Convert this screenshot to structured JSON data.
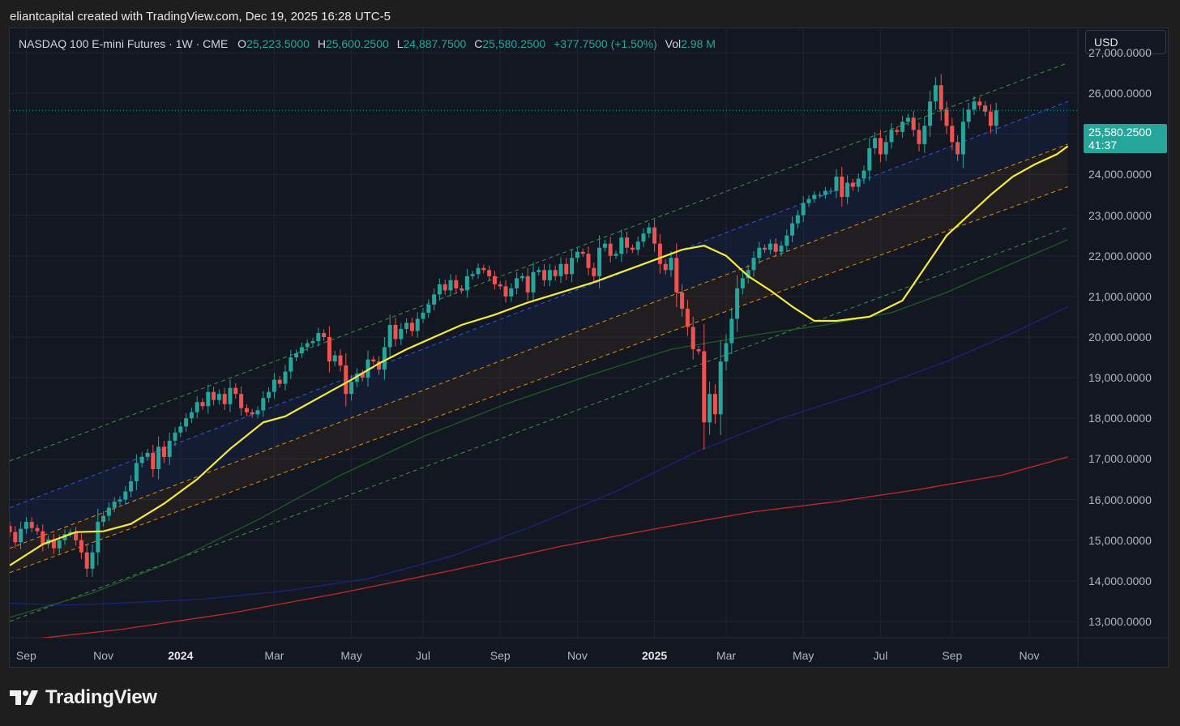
{
  "header": {
    "caption": "eliantcapital created with TradingView.com, Dec 19, 2025 16:28 UTC-5"
  },
  "legend": {
    "symbol": "NASDAQ 100 E-mini Futures · 1W · CME",
    "open_label": "O",
    "open": "25,223.5000",
    "high_label": "H",
    "high": "25,600.2500",
    "low_label": "L",
    "low": "24,887.7500",
    "close_label": "C",
    "close": "25,580.2500",
    "change": "+377.7500 (+1.50%)",
    "vol_label": "Vol",
    "vol": "2.98 M"
  },
  "currency_button": "USD",
  "price_tag": {
    "price": "25,580.2500",
    "countdown": "41:37"
  },
  "brand": {
    "name": "TradingView",
    "logo_icon": "tradingview-logo-icon"
  },
  "colors": {
    "background": "#131722",
    "up": "#26a69a",
    "down": "#ef5350",
    "ma_fast": "#f5eb3b",
    "ma_mid": "#1b5e20",
    "ma_slow": "#1a237e",
    "ma_longest": "#c62828",
    "channel_outer": "#4caf50",
    "channel_upper": "#2962ff",
    "channel_inner": "#ff9800"
  },
  "chart_data": {
    "type": "candlestick",
    "symbol": "NASDAQ 100 E-mini Futures",
    "interval": "1W",
    "exchange": "CME",
    "y_range": [
      12600,
      27600
    ],
    "y_ticks": [
      {
        "value": 13000,
        "label": "13,000.0000"
      },
      {
        "value": 14000,
        "label": "14,000.0000"
      },
      {
        "value": 15000,
        "label": "15,000.0000"
      },
      {
        "value": 16000,
        "label": "16,000.0000"
      },
      {
        "value": 17000,
        "label": "17,000.0000"
      },
      {
        "value": 18000,
        "label": "18,000.0000"
      },
      {
        "value": 19000,
        "label": "19,000.0000"
      },
      {
        "value": 20000,
        "label": "20,000.0000"
      },
      {
        "value": 21000,
        "label": "21,000.0000"
      },
      {
        "value": 22000,
        "label": "22,000.0000"
      },
      {
        "value": 23000,
        "label": "23,000.0000"
      },
      {
        "value": 24000,
        "label": "24,000.0000"
      },
      {
        "value": 25000,
        "label": "25,000.0000"
      },
      {
        "value": 26000,
        "label": "26,000.0000"
      },
      {
        "value": 27000,
        "label": "27,000.0000"
      }
    ],
    "x_ticks": [
      {
        "week": 3,
        "label": "Sep",
        "year": false
      },
      {
        "week": 17,
        "label": "Nov",
        "year": false
      },
      {
        "week": 31,
        "label": "2024",
        "year": true
      },
      {
        "week": 48,
        "label": "Mar",
        "year": false
      },
      {
        "week": 62,
        "label": "May",
        "year": false
      },
      {
        "week": 75,
        "label": "Jul",
        "year": false
      },
      {
        "week": 89,
        "label": "Sep",
        "year": false
      },
      {
        "week": 103,
        "label": "Nov",
        "year": false
      },
      {
        "week": 117,
        "label": "2025",
        "year": true
      },
      {
        "week": 130,
        "label": "Mar",
        "year": false
      },
      {
        "week": 144,
        "label": "May",
        "year": false
      },
      {
        "week": 158,
        "label": "Jul",
        "year": false
      },
      {
        "week": 171,
        "label": "Sep",
        "year": false
      },
      {
        "week": 185,
        "label": "Nov",
        "year": false
      }
    ],
    "last_price": 25580.25,
    "closes": [
      15200,
      14950,
      15280,
      15450,
      15300,
      15220,
      14900,
      15020,
      14800,
      15000,
      15150,
      15200,
      15000,
      14700,
      14300,
      14700,
      15450,
      15600,
      15800,
      15950,
      16000,
      16200,
      16450,
      16900,
      17050,
      17150,
      16750,
      17300,
      17050,
      17450,
      17650,
      17800,
      18000,
      18150,
      18400,
      18300,
      18650,
      18450,
      18600,
      18350,
      18750,
      18600,
      18250,
      18150,
      18100,
      18200,
      18500,
      18650,
      18950,
      18850,
      19150,
      19500,
      19600,
      19750,
      19850,
      19900,
      20100,
      20000,
      19400,
      19550,
      19300,
      18600,
      18900,
      19100,
      19000,
      19450,
      19400,
      19200,
      19750,
      20300,
      19950,
      20200,
      20350,
      20150,
      20450,
      20600,
      20800,
      21050,
      21300,
      21150,
      21400,
      21200,
      21150,
      21500,
      21550,
      21700,
      21650,
      21500,
      21300,
      21250,
      21000,
      21200,
      21450,
      21500,
      21100,
      21600,
      21650,
      21400,
      21650,
      21500,
      21800,
      21550,
      21950,
      22100,
      22050,
      21700,
      21500,
      22200,
      22300,
      22000,
      22050,
      22450,
      22200,
      22150,
      22350,
      22550,
      22700,
      22300,
      21800,
      21650,
      21950,
      21100,
      20700,
      20250,
      19700,
      19650,
      17900,
      18600,
      18100,
      19400,
      19850,
      20450,
      21200,
      21450,
      21650,
      21950,
      22200,
      22150,
      22300,
      22100,
      22250,
      22500,
      22800,
      23000,
      23300,
      23400,
      23500,
      23500,
      23600,
      23600,
      23950,
      23450,
      23800,
      23700,
      23900,
      24100,
      24650,
      24900,
      24500,
      24800,
      25100,
      25050,
      25300,
      25400,
      25100,
      24750,
      25200,
      25800,
      26200,
      25600,
      25200,
      24800,
      24500,
      25300,
      25600,
      25800,
      25700,
      25550,
      25200,
      25580.25
    ],
    "ma_fast": [
      [
        0,
        14380
      ],
      [
        6,
        14900
      ],
      [
        12,
        15200
      ],
      [
        17,
        15220
      ],
      [
        22,
        15400
      ],
      [
        28,
        15900
      ],
      [
        34,
        16500
      ],
      [
        40,
        17250
      ],
      [
        46,
        17900
      ],
      [
        50,
        18050
      ],
      [
        56,
        18500
      ],
      [
        62,
        18950
      ],
      [
        67,
        19350
      ],
      [
        72,
        19700
      ],
      [
        77,
        20000
      ],
      [
        82,
        20300
      ],
      [
        88,
        20550
      ],
      [
        94,
        20850
      ],
      [
        100,
        21100
      ],
      [
        106,
        21350
      ],
      [
        112,
        21650
      ],
      [
        118,
        21950
      ],
      [
        122,
        22150
      ],
      [
        126,
        22250
      ],
      [
        130,
        22000
      ],
      [
        134,
        21500
      ],
      [
        138,
        21150
      ],
      [
        142,
        20750
      ],
      [
        146,
        20400
      ],
      [
        150,
        20400
      ],
      [
        156,
        20500
      ],
      [
        162,
        20900
      ],
      [
        166,
        21700
      ],
      [
        170,
        22500
      ],
      [
        174,
        23000
      ],
      [
        178,
        23500
      ],
      [
        182,
        23950
      ],
      [
        186,
        24250
      ],
      [
        190,
        24500
      ],
      [
        192,
        24700
      ]
    ],
    "ma_mid": [
      [
        0,
        13100
      ],
      [
        15,
        13700
      ],
      [
        30,
        14500
      ],
      [
        45,
        15500
      ],
      [
        60,
        16600
      ],
      [
        75,
        17550
      ],
      [
        90,
        18350
      ],
      [
        105,
        19050
      ],
      [
        120,
        19700
      ],
      [
        135,
        20050
      ],
      [
        148,
        20300
      ],
      [
        160,
        20600
      ],
      [
        170,
        21100
      ],
      [
        180,
        21700
      ],
      [
        192,
        22400
      ]
    ],
    "ma_slow": [
      [
        0,
        13450
      ],
      [
        10,
        13400
      ],
      [
        20,
        13450
      ],
      [
        35,
        13550
      ],
      [
        50,
        13750
      ],
      [
        65,
        14050
      ],
      [
        80,
        14600
      ],
      [
        95,
        15350
      ],
      [
        110,
        16200
      ],
      [
        125,
        17200
      ],
      [
        140,
        18000
      ],
      [
        155,
        18650
      ],
      [
        170,
        19400
      ],
      [
        182,
        20100
      ],
      [
        192,
        20750
      ]
    ],
    "ma_longest": [
      [
        5,
        12580
      ],
      [
        20,
        12800
      ],
      [
        40,
        13200
      ],
      [
        60,
        13700
      ],
      [
        80,
        14250
      ],
      [
        100,
        14850
      ],
      [
        120,
        15350
      ],
      [
        135,
        15700
      ],
      [
        150,
        15950
      ],
      [
        165,
        16250
      ],
      [
        180,
        16600
      ],
      [
        192,
        17050
      ]
    ],
    "channel": {
      "outer_upper": [
        [
          0,
          16950
        ],
        [
          192,
          26750
        ]
      ],
      "upper": [
        [
          0,
          15800
        ],
        [
          192,
          25800
        ]
      ],
      "inner_upper": [
        [
          0,
          14800
        ],
        [
          192,
          24750
        ]
      ],
      "inner_lower": [
        [
          0,
          14200
        ],
        [
          192,
          23700
        ]
      ],
      "outer_lower": [
        [
          0,
          13000
        ],
        [
          192,
          22700
        ]
      ]
    }
  }
}
